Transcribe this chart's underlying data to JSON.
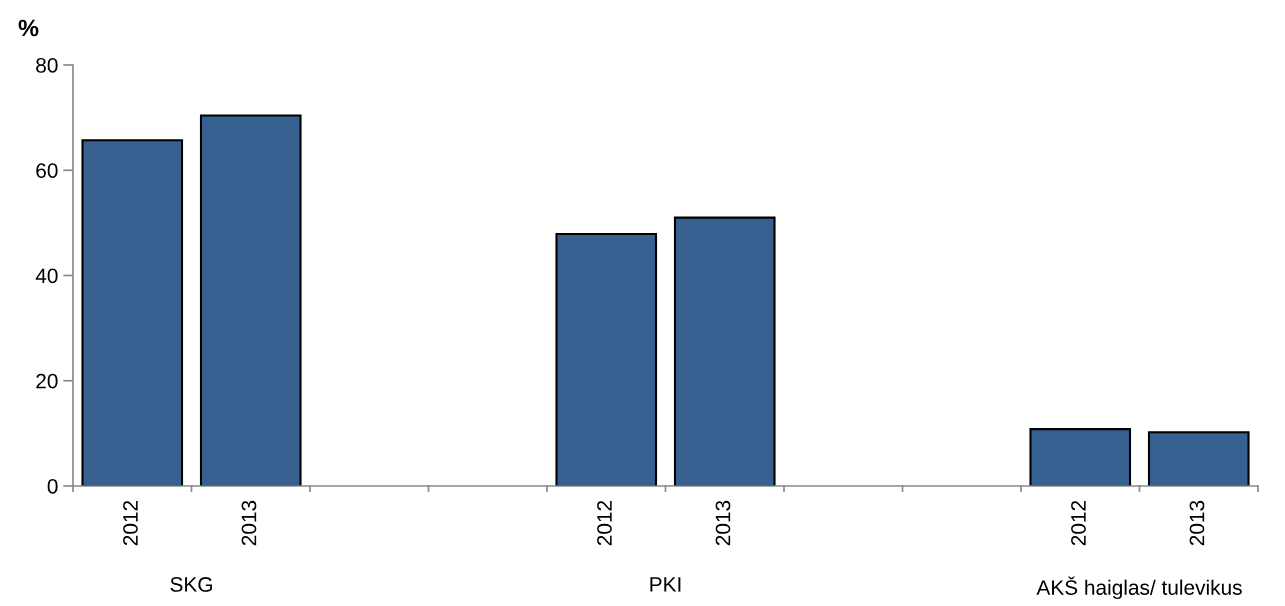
{
  "chart_data": {
    "type": "bar",
    "ylabel": "%",
    "categories": [
      "2012",
      "2013",
      null,
      null,
      "2012",
      "2013",
      null,
      null,
      "2012",
      "2013"
    ],
    "values": [
      65.7,
      70.4,
      null,
      null,
      47.9,
      51.0,
      null,
      null,
      10.8,
      10.2
    ],
    "color": "#36608f",
    "ylim": [
      0,
      80
    ],
    "yticks": [
      0,
      20,
      40,
      60,
      80
    ],
    "grid": false,
    "annotations": [
      "SKG",
      "PKI",
      "AKŠ haiglas/ tulevikus"
    ]
  }
}
